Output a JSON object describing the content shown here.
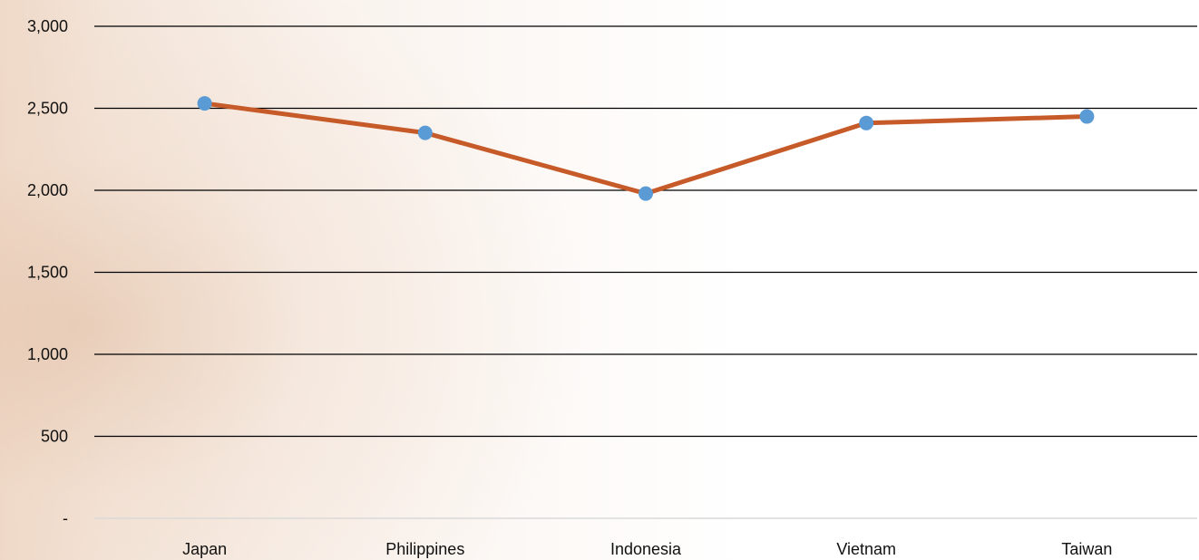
{
  "chart_data": {
    "type": "line",
    "categories": [
      "Japan",
      "Philippines",
      "Indonesia",
      "Vietnam",
      "Taiwan"
    ],
    "series": [
      {
        "values": [
          2530,
          2350,
          1980,
          2410,
          2450
        ],
        "line_color": "#C65A28",
        "marker_color": "#5B9BD5"
      }
    ],
    "y_ticks": [
      {
        "value": 0,
        "label": "-"
      },
      {
        "value": 500,
        "label": "500"
      },
      {
        "value": 1000,
        "label": "1,000"
      },
      {
        "value": 1500,
        "label": "1,500"
      },
      {
        "value": 2000,
        "label": "2,000"
      },
      {
        "value": 2500,
        "label": "2,500"
      },
      {
        "value": 3000,
        "label": "3,000"
      }
    ],
    "ylim": [
      0,
      3000
    ],
    "title": "",
    "xlabel": "",
    "ylabel": "",
    "grid": true,
    "gridline_color": "#000000",
    "baseline_color": "#D9D9D9",
    "legend": "none"
  }
}
